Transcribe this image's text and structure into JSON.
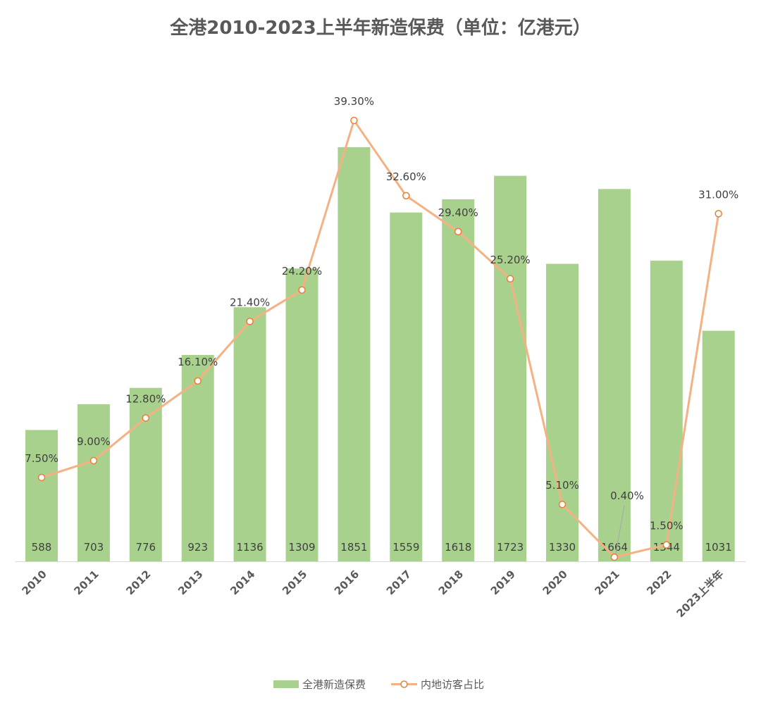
{
  "chart_data": {
    "type": "bar+line",
    "title": "全港2010-2023上半年新造保费（单位：亿港元）",
    "categories": [
      "2010",
      "2011",
      "2012",
      "2013",
      "2014",
      "2015",
      "2016",
      "2017",
      "2018",
      "2019",
      "2020",
      "2021",
      "2022",
      "2023上半年"
    ],
    "series": [
      {
        "name": "全港新造保费",
        "type": "bar",
        "color": "#A9D18E",
        "values": [
          588,
          703,
          776,
          923,
          1136,
          1309,
          1851,
          1559,
          1618,
          1723,
          1330,
          1664,
          1344,
          1031
        ],
        "labels": [
          "588",
          "703",
          "776",
          "923",
          "1136",
          "1309",
          "1851",
          "1559",
          "1618",
          "1723",
          "1330",
          "1664",
          "1344",
          "1031"
        ]
      },
      {
        "name": "内地访客占比",
        "type": "line",
        "color": "#F4B183",
        "marker_color": "#ED7D31",
        "values": [
          7.5,
          9.0,
          12.8,
          16.1,
          21.4,
          24.2,
          39.3,
          32.6,
          29.4,
          25.2,
          5.1,
          0.4,
          1.5,
          31.0
        ],
        "labels": [
          "7.50%",
          "9.00%",
          "12.80%",
          "16.10%",
          "21.40%",
          "24.20%",
          "39.30%",
          "32.60%",
          "29.40%",
          "25.20%",
          "5.10%",
          "0.40%",
          "1.50%",
          "31.00%"
        ]
      }
    ],
    "legend": "bottom",
    "grid": false
  }
}
